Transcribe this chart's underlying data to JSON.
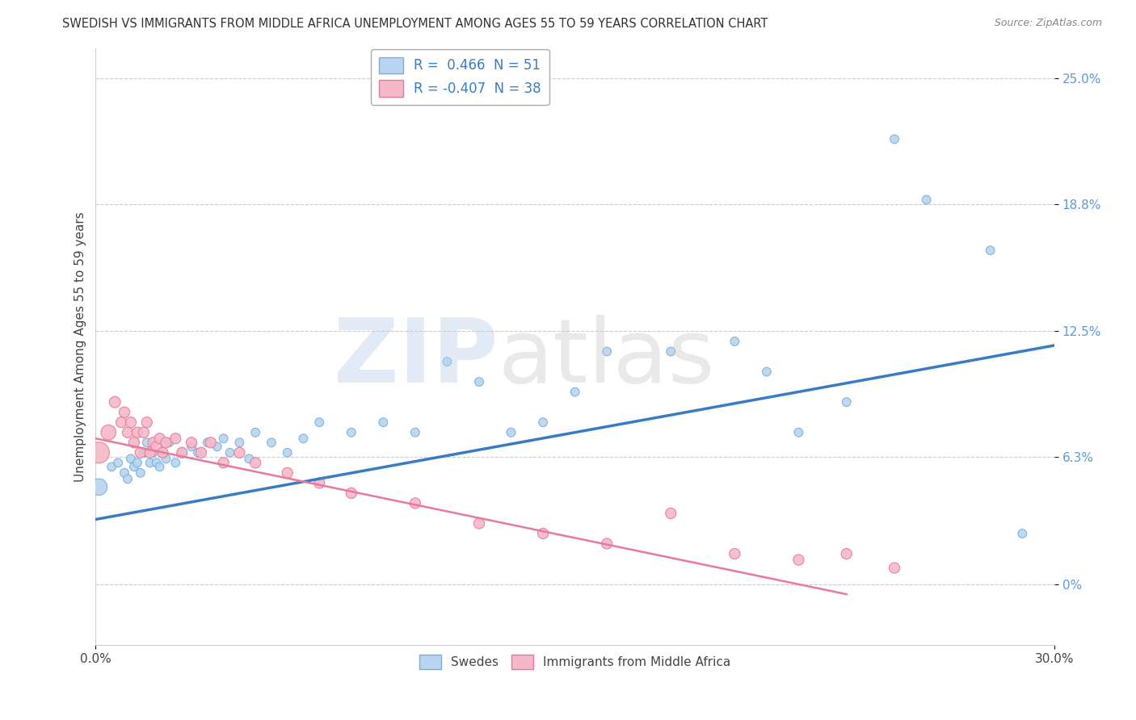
{
  "title": "SWEDISH VS IMMIGRANTS FROM MIDDLE AFRICA UNEMPLOYMENT AMONG AGES 55 TO 59 YEARS CORRELATION CHART",
  "source": "Source: ZipAtlas.com",
  "ylabel": "Unemployment Among Ages 55 to 59 years",
  "xlim": [
    0.0,
    0.3
  ],
  "ylim": [
    -0.03,
    0.265
  ],
  "ytick_positions": [
    0.0,
    0.063,
    0.125,
    0.188,
    0.25
  ],
  "ytick_labels": [
    "0%",
    "6.3%",
    "12.5%",
    "18.8%",
    "25.0%"
  ],
  "swedes_color": "#b8d4f0",
  "immigrants_color": "#f5b8c8",
  "swedes_edge": "#7aafd4",
  "immigrants_edge": "#e8799a",
  "blue_line_color": "#3a7cc4",
  "pink_line_color": "#e8799a",
  "grid_color": "#cccccc",
  "background_color": "#ffffff",
  "swedes_x": [
    0.001,
    0.005,
    0.007,
    0.009,
    0.01,
    0.011,
    0.012,
    0.013,
    0.014,
    0.015,
    0.016,
    0.017,
    0.018,
    0.019,
    0.02,
    0.021,
    0.022,
    0.023,
    0.025,
    0.027,
    0.03,
    0.032,
    0.035,
    0.038,
    0.04,
    0.042,
    0.045,
    0.048,
    0.05,
    0.055,
    0.06,
    0.065,
    0.07,
    0.08,
    0.09,
    0.1,
    0.11,
    0.12,
    0.13,
    0.14,
    0.15,
    0.16,
    0.18,
    0.2,
    0.21,
    0.22,
    0.235,
    0.25,
    0.26,
    0.28,
    0.29
  ],
  "swedes_y": [
    0.048,
    0.058,
    0.06,
    0.055,
    0.052,
    0.062,
    0.058,
    0.06,
    0.055,
    0.065,
    0.07,
    0.06,
    0.065,
    0.06,
    0.058,
    0.065,
    0.062,
    0.07,
    0.06,
    0.065,
    0.068,
    0.065,
    0.07,
    0.068,
    0.072,
    0.065,
    0.07,
    0.062,
    0.075,
    0.07,
    0.065,
    0.072,
    0.08,
    0.075,
    0.08,
    0.075,
    0.11,
    0.1,
    0.075,
    0.08,
    0.095,
    0.115,
    0.115,
    0.12,
    0.105,
    0.075,
    0.09,
    0.22,
    0.19,
    0.165,
    0.025
  ],
  "swedes_sizes": [
    220,
    60,
    60,
    60,
    60,
    60,
    60,
    60,
    60,
    60,
    60,
    60,
    60,
    60,
    60,
    60,
    60,
    60,
    60,
    60,
    60,
    60,
    60,
    60,
    60,
    60,
    60,
    60,
    60,
    60,
    60,
    60,
    60,
    60,
    60,
    60,
    60,
    60,
    60,
    60,
    60,
    60,
    60,
    60,
    60,
    60,
    60,
    60,
    60,
    60,
    60
  ],
  "immigrants_x": [
    0.001,
    0.004,
    0.006,
    0.008,
    0.009,
    0.01,
    0.011,
    0.012,
    0.013,
    0.014,
    0.015,
    0.016,
    0.017,
    0.018,
    0.019,
    0.02,
    0.021,
    0.022,
    0.025,
    0.027,
    0.03,
    0.033,
    0.036,
    0.04,
    0.045,
    0.05,
    0.06,
    0.07,
    0.08,
    0.1,
    0.12,
    0.14,
    0.16,
    0.18,
    0.2,
    0.22,
    0.235,
    0.25
  ],
  "immigrants_y": [
    0.065,
    0.075,
    0.09,
    0.08,
    0.085,
    0.075,
    0.08,
    0.07,
    0.075,
    0.065,
    0.075,
    0.08,
    0.065,
    0.07,
    0.068,
    0.072,
    0.065,
    0.07,
    0.072,
    0.065,
    0.07,
    0.065,
    0.07,
    0.06,
    0.065,
    0.06,
    0.055,
    0.05,
    0.045,
    0.04,
    0.03,
    0.025,
    0.02,
    0.035,
    0.015,
    0.012,
    0.015,
    0.008
  ],
  "immigrants_sizes": [
    350,
    180,
    100,
    90,
    90,
    90,
    90,
    90,
    90,
    90,
    90,
    90,
    90,
    90,
    90,
    90,
    90,
    90,
    90,
    90,
    90,
    90,
    90,
    90,
    90,
    90,
    90,
    90,
    90,
    90,
    90,
    90,
    90,
    90,
    90,
    90,
    90,
    90
  ],
  "blue_line_x": [
    0.0,
    0.3
  ],
  "blue_line_y": [
    0.032,
    0.118
  ],
  "pink_line_x": [
    0.0,
    0.235
  ],
  "pink_line_y": [
    0.072,
    -0.005
  ]
}
